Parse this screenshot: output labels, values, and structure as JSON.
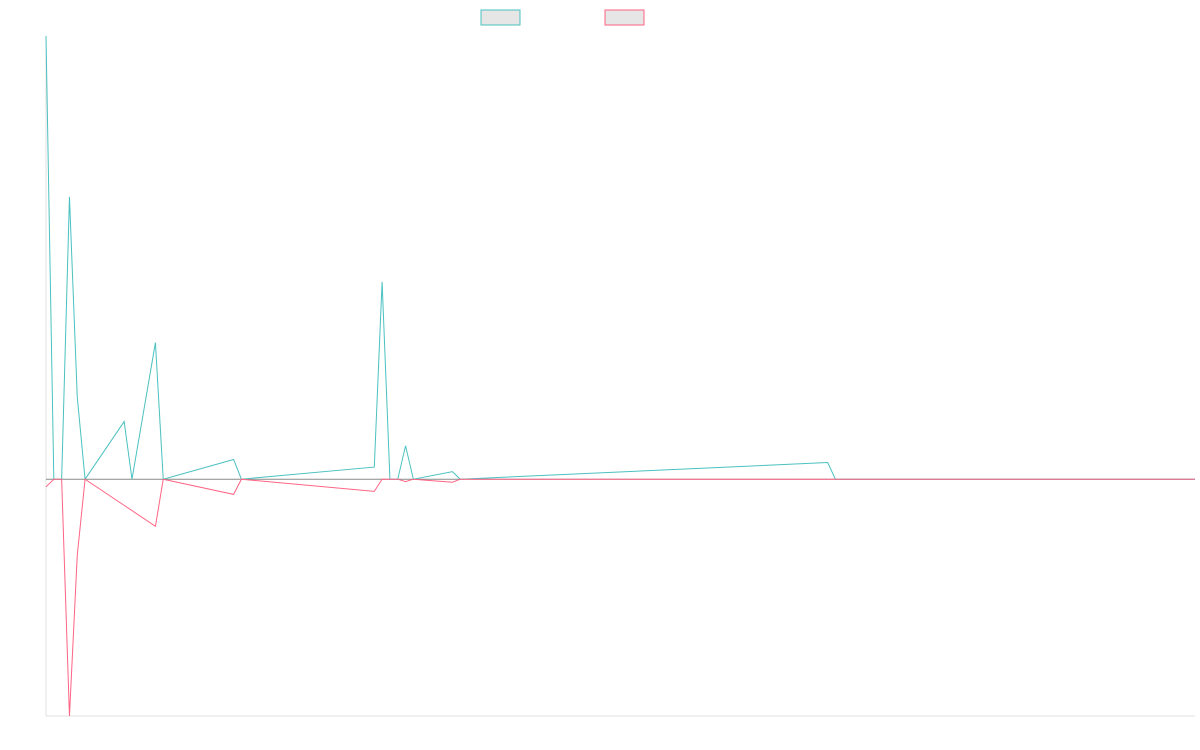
{
  "chart_data": {
    "type": "line",
    "title": "",
    "xlabel": "",
    "ylabel": "",
    "grid": false,
    "legend_position": "top-center",
    "x_count": 148,
    "ylim": [
      -78,
      146
    ],
    "series": [
      {
        "name": "",
        "color": "#4bc0c0",
        "fill": "#e6e6e6",
        "points": [
          [
            0,
            146
          ],
          [
            1,
            0
          ],
          [
            2,
            0
          ],
          [
            3,
            93
          ],
          [
            4,
            27
          ],
          [
            5,
            0
          ],
          [
            10,
            19
          ],
          [
            11,
            0
          ],
          [
            14,
            45
          ],
          [
            15,
            0
          ],
          [
            24,
            6.5
          ],
          [
            25,
            0
          ],
          [
            42,
            4
          ],
          [
            43,
            65
          ],
          [
            44,
            0
          ],
          [
            45,
            0
          ],
          [
            46,
            11
          ],
          [
            47,
            0
          ],
          [
            52,
            2.5
          ],
          [
            53,
            0
          ],
          [
            100,
            5.5
          ],
          [
            101,
            0
          ],
          [
            147,
            0
          ]
        ]
      },
      {
        "name": "",
        "color": "#ff6384",
        "fill": "#e6e6e6",
        "points": [
          [
            0,
            -2.5
          ],
          [
            1,
            0
          ],
          [
            2,
            0
          ],
          [
            3,
            -78
          ],
          [
            4,
            -25
          ],
          [
            5,
            0
          ],
          [
            14,
            -15.5
          ],
          [
            15,
            0
          ],
          [
            24,
            -5
          ],
          [
            25,
            0
          ],
          [
            42,
            -4
          ],
          [
            43,
            0
          ],
          [
            45,
            0
          ],
          [
            46,
            -0.8
          ],
          [
            47,
            0
          ],
          [
            52,
            -1
          ],
          [
            53,
            0
          ],
          [
            147,
            0
          ]
        ]
      }
    ]
  }
}
